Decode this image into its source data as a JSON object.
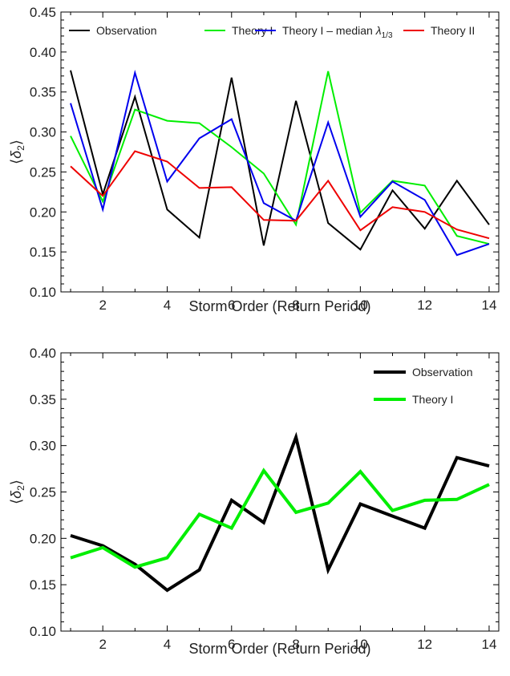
{
  "chart_data": [
    {
      "type": "line",
      "title": "",
      "xlabel": "Storm  Order (Return Period)",
      "ylabel_parts": [
        "⟨",
        "δ",
        "2",
        "⟩"
      ],
      "xlim": [
        0.7,
        14.3
      ],
      "ylim": [
        0.1,
        0.45
      ],
      "x_ticks": [
        2,
        4,
        6,
        8,
        10,
        12,
        14
      ],
      "y_ticks": [
        0.1,
        0.15,
        0.2,
        0.25,
        0.3,
        0.35,
        0.4,
        0.45
      ],
      "y_tick_labels": [
        "0.10",
        "0.15",
        "0.20",
        "0.25",
        "0.30",
        "0.35",
        "0.40",
        "0.45"
      ],
      "grid": false,
      "legend_position": "top",
      "x": [
        1,
        2,
        3,
        4,
        5,
        6,
        7,
        8,
        9,
        10,
        11,
        12,
        13,
        14
      ],
      "series": [
        {
          "name": "Observation",
          "color": "#000000",
          "values": [
            0.377,
            0.222,
            0.344,
            0.203,
            0.168,
            0.368,
            0.158,
            0.339,
            0.186,
            0.153,
            0.227,
            0.179,
            0.239,
            0.184
          ]
        },
        {
          "name": "Theory I",
          "color": "#00ee00",
          "values": [
            0.295,
            0.213,
            0.328,
            0.314,
            0.311,
            0.281,
            0.248,
            0.184,
            0.376,
            0.199,
            0.239,
            0.233,
            0.17,
            0.16
          ]
        },
        {
          "name": "Theory I – median",
          "name_math": "λ",
          "name_sub": "1/3",
          "color": "#0000ee",
          "values": [
            0.336,
            0.203,
            0.374,
            0.238,
            0.292,
            0.316,
            0.211,
            0.189,
            0.312,
            0.194,
            0.238,
            0.215,
            0.146,
            0.16
          ]
        },
        {
          "name": "Theory II",
          "color": "#ee0000",
          "values": [
            0.257,
            0.22,
            0.276,
            0.263,
            0.23,
            0.231,
            0.19,
            0.189,
            0.239,
            0.177,
            0.206,
            0.2,
            0.178,
            0.167
          ]
        }
      ]
    },
    {
      "type": "line",
      "title": "",
      "xlabel": "Storm  Order (Return Period)",
      "ylabel_parts": [
        "⟨",
        "δ",
        "2",
        "⟩"
      ],
      "xlim": [
        0.7,
        14.3
      ],
      "ylim": [
        0.1,
        0.4
      ],
      "x_ticks": [
        2,
        4,
        6,
        8,
        10,
        12,
        14
      ],
      "y_ticks": [
        0.1,
        0.15,
        0.2,
        0.25,
        0.3,
        0.35,
        0.4
      ],
      "y_tick_labels": [
        "0.10",
        "0.15",
        "0.20",
        "0.25",
        "0.30",
        "0.35",
        "0.40"
      ],
      "grid": false,
      "legend_position": "top-right",
      "x": [
        1,
        2,
        3,
        4,
        5,
        6,
        7,
        8,
        9,
        10,
        11,
        12,
        13,
        14
      ],
      "series": [
        {
          "name": "Observation",
          "color": "#000000",
          "values": [
            0.203,
            0.192,
            0.172,
            0.144,
            0.166,
            0.241,
            0.217,
            0.309,
            0.166,
            0.237,
            0.224,
            0.211,
            0.287,
            0.278
          ]
        },
        {
          "name": "Theory I",
          "color": "#00ee00",
          "values": [
            0.179,
            0.19,
            0.169,
            0.179,
            0.226,
            0.211,
            0.273,
            0.228,
            0.238,
            0.272,
            0.23,
            0.241,
            0.242,
            0.258
          ]
        }
      ]
    }
  ]
}
